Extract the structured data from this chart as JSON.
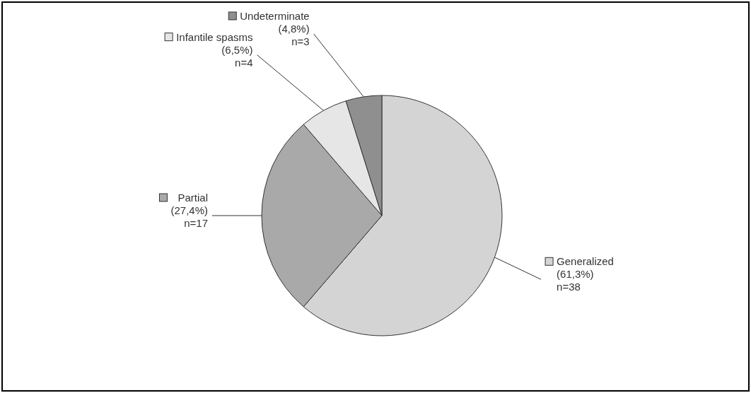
{
  "chart_data": {
    "type": "pie",
    "categories": [
      "Generalized",
      "Partial",
      "Infantile spasms",
      "Undeterminate"
    ],
    "values": [
      38,
      17,
      4,
      3
    ],
    "colors": [
      "#d4d4d4",
      "#a9a9a9",
      "#e6e6e6",
      "#8f8f8f"
    ],
    "value_labels": [
      "(61,3%)\nn=38",
      "(27,4%)\nn=17",
      "(6,5%)\nn=4",
      "(4,8%)\nn=3"
    ],
    "legend": "top"
  }
}
